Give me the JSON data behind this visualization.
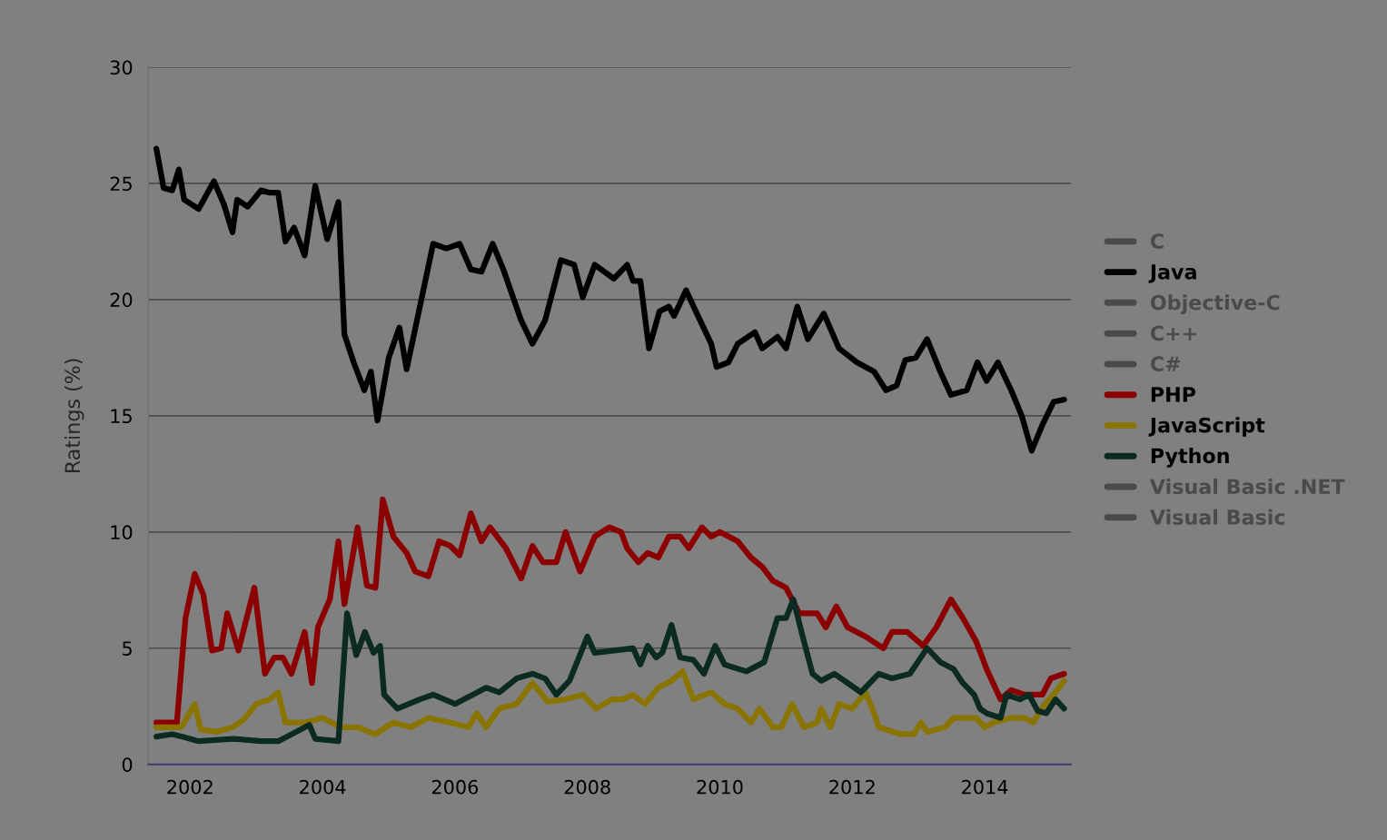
{
  "chart_data": {
    "type": "line",
    "ylabel": "Ratings (%)",
    "xlim": [
      2001.37,
      2015.3
    ],
    "xticks": [
      2002,
      2004,
      2006,
      2008,
      2010,
      2012,
      2014
    ],
    "ylim": [
      0,
      30
    ],
    "yticks": [
      0,
      5,
      10,
      15,
      20,
      25,
      30
    ],
    "grid": "y",
    "legend": "right",
    "marker": "none",
    "line_style": "solid",
    "series": [
      {
        "name": "C",
        "color": "#4a4a4a"
      },
      {
        "name": "Java",
        "color": "#000000",
        "x": [
          2001.49,
          2001.6,
          2001.73,
          2001.83,
          2001.91,
          2002.13,
          2002.36,
          2002.51,
          2002.64,
          2002.71,
          2002.87,
          2003.07,
          2003.2,
          2003.33,
          2003.44,
          2003.57,
          2003.73,
          2003.89,
          2004.07,
          2004.24,
          2004.33,
          2004.47,
          2004.63,
          2004.73,
          2004.83,
          2005.0,
          2005.16,
          2005.27,
          2005.47,
          2005.67,
          2005.87,
          2006.07,
          2006.24,
          2006.4,
          2006.57,
          2006.73,
          2007.0,
          2007.17,
          2007.36,
          2007.6,
          2007.8,
          2007.93,
          2008.11,
          2008.4,
          2008.6,
          2008.69,
          2008.8,
          2008.93,
          2009.09,
          2009.23,
          2009.31,
          2009.49,
          2009.67,
          2009.87,
          2009.95,
          2010.13,
          2010.27,
          2010.53,
          2010.64,
          2010.87,
          2011.0,
          2011.17,
          2011.33,
          2011.57,
          2011.8,
          2012.07,
          2012.33,
          2012.51,
          2012.67,
          2012.8,
          2012.96,
          2013.13,
          2013.33,
          2013.49,
          2013.73,
          2013.89,
          2014.03,
          2014.2,
          2014.4,
          2014.56,
          2014.71,
          2014.87,
          2015.04,
          2015.2
        ],
        "values": [
          26.5,
          24.8,
          24.7,
          25.6,
          24.3,
          23.9,
          25.1,
          24.1,
          22.9,
          24.3,
          24.0,
          24.7,
          24.6,
          24.6,
          22.5,
          23.1,
          21.9,
          24.9,
          22.6,
          24.2,
          18.5,
          17.3,
          16.1,
          16.9,
          14.8,
          17.5,
          18.8,
          17.0,
          19.7,
          22.4,
          22.2,
          22.4,
          21.3,
          21.2,
          22.4,
          21.3,
          19.1,
          18.1,
          19.1,
          21.7,
          21.5,
          20.1,
          21.5,
          20.9,
          21.5,
          20.8,
          20.8,
          17.9,
          19.5,
          19.7,
          19.3,
          20.4,
          19.3,
          18.1,
          17.1,
          17.3,
          18.1,
          18.6,
          17.9,
          18.4,
          17.9,
          19.7,
          18.3,
          19.4,
          17.9,
          17.3,
          16.9,
          16.1,
          16.3,
          17.4,
          17.5,
          18.3,
          16.9,
          15.9,
          16.1,
          17.3,
          16.5,
          17.3,
          16.1,
          15.0,
          13.5,
          14.6,
          15.6,
          15.7
        ]
      },
      {
        "name": "Objective-C",
        "color": "#4a4a4a"
      },
      {
        "name": "C++",
        "color": "#4a4a4a"
      },
      {
        "name": "C#",
        "color": "#4a4a4a"
      },
      {
        "name": "PHP",
        "color": "#8b0000",
        "x": [
          2001.49,
          2001.8,
          2001.93,
          2002.07,
          2002.2,
          2002.33,
          2002.47,
          2002.56,
          2002.73,
          2002.97,
          2003.13,
          2003.27,
          2003.4,
          2003.53,
          2003.73,
          2003.84,
          2003.93,
          2004.11,
          2004.24,
          2004.33,
          2004.53,
          2004.67,
          2004.8,
          2004.91,
          2005.07,
          2005.27,
          2005.4,
          2005.6,
          2005.76,
          2005.93,
          2006.07,
          2006.24,
          2006.4,
          2006.53,
          2006.77,
          2007.0,
          2007.17,
          2007.33,
          2007.53,
          2007.67,
          2007.89,
          2008.11,
          2008.33,
          2008.51,
          2008.6,
          2008.77,
          2008.91,
          2009.07,
          2009.23,
          2009.4,
          2009.53,
          2009.73,
          2009.87,
          2010.0,
          2010.27,
          2010.47,
          2010.64,
          2010.8,
          2011.0,
          2011.2,
          2011.47,
          2011.6,
          2011.76,
          2011.93,
          2012.2,
          2012.47,
          2012.6,
          2012.83,
          2013.07,
          2013.27,
          2013.49,
          2013.67,
          2013.87,
          2014.03,
          2014.24,
          2014.4,
          2014.6,
          2014.87,
          2015.0,
          2015.2
        ],
        "values": [
          1.8,
          1.8,
          6.3,
          8.2,
          7.3,
          4.9,
          5.0,
          6.5,
          4.9,
          7.6,
          3.9,
          4.6,
          4.6,
          3.9,
          5.7,
          3.5,
          5.9,
          7.1,
          9.6,
          6.9,
          10.2,
          7.7,
          7.6,
          11.4,
          9.8,
          9.1,
          8.3,
          8.1,
          9.6,
          9.4,
          9.0,
          10.8,
          9.6,
          10.2,
          9.3,
          8.0,
          9.4,
          8.7,
          8.7,
          10.0,
          8.3,
          9.8,
          10.2,
          10.0,
          9.3,
          8.7,
          9.1,
          8.9,
          9.8,
          9.8,
          9.3,
          10.2,
          9.8,
          10.0,
          9.6,
          8.9,
          8.5,
          7.9,
          7.6,
          6.5,
          6.5,
          5.9,
          6.8,
          5.9,
          5.5,
          5.0,
          5.7,
          5.7,
          5.1,
          5.9,
          7.1,
          6.3,
          5.3,
          4.1,
          2.8,
          3.2,
          3.0,
          3.0,
          3.7,
          3.9
        ]
      },
      {
        "name": "JavaScript",
        "color": "#8a7400",
        "x": [
          2001.49,
          2001.87,
          2002.07,
          2002.16,
          2002.4,
          2002.64,
          2002.8,
          2003.0,
          2003.2,
          2003.33,
          2003.44,
          2003.73,
          2004.0,
          2004.27,
          2004.53,
          2004.8,
          2005.07,
          2005.33,
          2005.6,
          2005.93,
          2006.2,
          2006.33,
          2006.47,
          2006.67,
          2006.93,
          2007.17,
          2007.4,
          2007.67,
          2007.93,
          2008.13,
          2008.37,
          2008.53,
          2008.69,
          2008.87,
          2009.07,
          2009.27,
          2009.44,
          2009.6,
          2009.87,
          2010.07,
          2010.27,
          2010.47,
          2010.6,
          2010.8,
          2010.93,
          2011.09,
          2011.27,
          2011.47,
          2011.53,
          2011.67,
          2011.8,
          2012.0,
          2012.2,
          2012.33,
          2012.4,
          2012.73,
          2012.93,
          2013.04,
          2013.13,
          2013.4,
          2013.53,
          2013.87,
          2014.0,
          2014.13,
          2014.4,
          2014.6,
          2014.73,
          2014.91,
          2015.07,
          2015.2
        ],
        "values": [
          1.6,
          1.6,
          2.6,
          1.5,
          1.4,
          1.6,
          1.9,
          2.6,
          2.8,
          3.1,
          1.8,
          1.8,
          2.0,
          1.6,
          1.6,
          1.3,
          1.8,
          1.6,
          2.0,
          1.8,
          1.6,
          2.2,
          1.6,
          2.4,
          2.6,
          3.5,
          2.7,
          2.8,
          3.0,
          2.4,
          2.8,
          2.8,
          3.0,
          2.6,
          3.3,
          3.6,
          4.0,
          2.8,
          3.1,
          2.6,
          2.4,
          1.8,
          2.4,
          1.6,
          1.6,
          2.6,
          1.6,
          1.8,
          2.4,
          1.6,
          2.6,
          2.4,
          3.1,
          2.2,
          1.6,
          1.3,
          1.3,
          1.8,
          1.4,
          1.6,
          2.0,
          2.0,
          1.6,
          1.8,
          2.0,
          2.0,
          1.8,
          2.6,
          3.1,
          3.6
        ]
      },
      {
        "name": "Python",
        "color": "#0a2a22",
        "x": [
          2001.49,
          2001.73,
          2001.87,
          2002.13,
          2002.67,
          2003.07,
          2003.33,
          2003.6,
          2003.8,
          2003.89,
          2004.24,
          2004.37,
          2004.51,
          2004.64,
          2004.77,
          2004.87,
          2004.93,
          2005.13,
          2005.47,
          2005.67,
          2006.0,
          2006.27,
          2006.47,
          2006.67,
          2006.93,
          2007.17,
          2007.36,
          2007.53,
          2007.73,
          2008.0,
          2008.11,
          2008.4,
          2008.69,
          2008.8,
          2008.91,
          2009.04,
          2009.13,
          2009.27,
          2009.4,
          2009.6,
          2009.76,
          2009.93,
          2010.07,
          2010.4,
          2010.67,
          2010.87,
          2011.0,
          2011.11,
          2011.27,
          2011.4,
          2011.53,
          2011.73,
          2011.93,
          2012.13,
          2012.4,
          2012.6,
          2012.87,
          2013.13,
          2013.33,
          2013.53,
          2013.67,
          2013.84,
          2013.93,
          2014.03,
          2014.24,
          2014.33,
          2014.53,
          2014.67,
          2014.8,
          2014.93,
          2015.07,
          2015.2
        ],
        "values": [
          1.2,
          1.3,
          1.2,
          1.0,
          1.1,
          1.0,
          1.0,
          1.4,
          1.7,
          1.1,
          1.0,
          6.5,
          4.7,
          5.7,
          4.8,
          5.1,
          3.0,
          2.4,
          2.8,
          3.0,
          2.6,
          3.0,
          3.3,
          3.1,
          3.7,
          3.9,
          3.7,
          3.0,
          3.6,
          5.5,
          4.8,
          4.9,
          5.0,
          4.3,
          5.1,
          4.6,
          4.8,
          6.0,
          4.6,
          4.5,
          3.9,
          5.1,
          4.3,
          4.0,
          4.4,
          6.3,
          6.3,
          7.1,
          5.3,
          3.9,
          3.6,
          3.9,
          3.5,
          3.1,
          3.9,
          3.7,
          3.9,
          5.0,
          4.4,
          4.1,
          3.5,
          3.0,
          2.4,
          2.2,
          2.0,
          3.0,
          2.8,
          3.0,
          2.3,
          2.2,
          2.8,
          2.4
        ]
      },
      {
        "name": "Visual Basic .NET",
        "color": "#4a4a4a"
      },
      {
        "name": "Visual Basic",
        "color": "#4a4a4a"
      }
    ]
  }
}
